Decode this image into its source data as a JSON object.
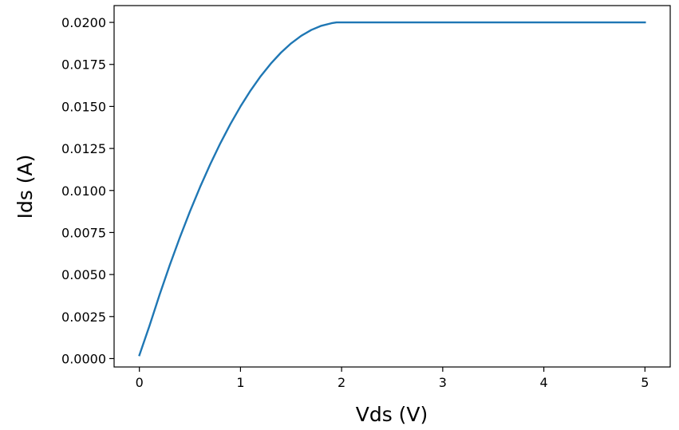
{
  "chart_data": {
    "type": "line",
    "title": "",
    "xlabel": "Vds (V)",
    "ylabel": "Ids (A)",
    "xlim": [
      -0.25,
      5.25
    ],
    "ylim": [
      -0.0005,
      0.021
    ],
    "grid": false,
    "x_ticks": [
      0,
      1,
      2,
      3,
      4,
      5
    ],
    "x_tick_labels": [
      "0",
      "1",
      "2",
      "3",
      "4",
      "5"
    ],
    "y_ticks": [
      0,
      0.0025,
      0.005,
      0.0075,
      0.01,
      0.0125,
      0.015,
      0.0175,
      0.02
    ],
    "y_tick_labels": [
      "0.0000",
      "0.0025",
      "0.0050",
      "0.0075",
      "0.0100",
      "0.0125",
      "0.0150",
      "0.0175",
      "0.0200"
    ],
    "series": [
      {
        "color": "#1f77b4",
        "x": [
          0.0,
          0.1,
          0.2,
          0.3,
          0.4,
          0.5,
          0.6,
          0.7,
          0.8,
          0.9,
          1.0,
          1.1,
          1.2,
          1.3,
          1.4,
          1.5,
          1.6,
          1.7,
          1.8,
          1.9,
          1.95,
          2.0,
          2.5,
          3.0,
          3.5,
          4.0,
          4.5,
          5.0
        ],
        "y": [
          0.0002,
          0.00195,
          0.0038,
          0.00555,
          0.0072,
          0.00875,
          0.0102,
          0.01155,
          0.0128,
          0.01395,
          0.015,
          0.01595,
          0.0168,
          0.01755,
          0.0182,
          0.01875,
          0.0192,
          0.01955,
          0.0198,
          0.01995,
          0.02,
          0.02,
          0.02,
          0.02,
          0.02,
          0.02,
          0.02,
          0.02
        ]
      }
    ]
  }
}
